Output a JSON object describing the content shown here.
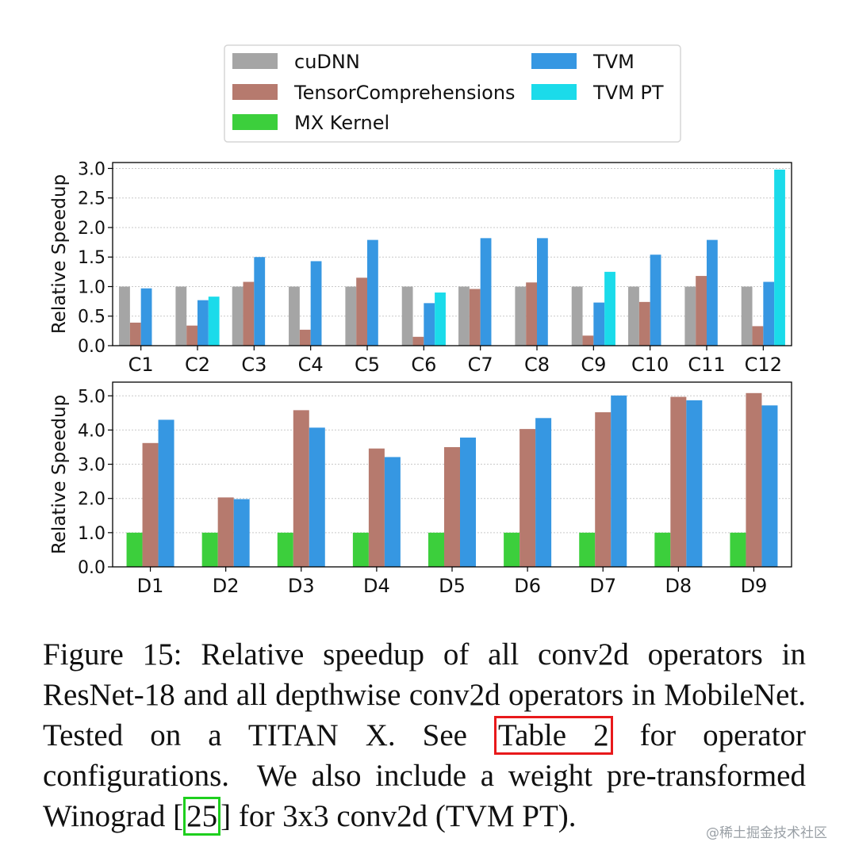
{
  "colors": {
    "cuDNN": "#a5a5a5",
    "TensorComprehensions": "#b67a6e",
    "MX Kernel": "#3ccf3c",
    "TVM": "#3697e2",
    "TVM PT": "#1bdbea"
  },
  "legend": {
    "entries": [
      "cuDNN",
      "TensorComprehensions",
      "MX Kernel",
      "TVM",
      "TVM PT"
    ]
  },
  "chart_data": [
    {
      "type": "bar",
      "ylabel": "Relative Speedup",
      "ylim": [
        0,
        3.1
      ],
      "yticks": [
        "0.0",
        "0.5",
        "1.0",
        "1.5",
        "2.0",
        "2.5",
        "3.0"
      ],
      "ytick_values": [
        0,
        0.5,
        1.0,
        1.5,
        2.0,
        2.5,
        3.0
      ],
      "categories": [
        "C1",
        "C2",
        "C3",
        "C4",
        "C5",
        "C6",
        "C7",
        "C8",
        "C9",
        "C10",
        "C11",
        "C12"
      ],
      "series": [
        {
          "name": "cuDNN",
          "values": [
            1.0,
            1.0,
            1.0,
            1.0,
            1.0,
            1.0,
            1.0,
            1.0,
            1.0,
            1.0,
            1.0,
            1.0
          ]
        },
        {
          "name": "TensorComprehensions",
          "values": [
            0.39,
            0.34,
            1.08,
            0.27,
            1.15,
            0.15,
            0.96,
            1.07,
            0.17,
            0.74,
            1.18,
            0.33
          ]
        },
        {
          "name": "TVM",
          "values": [
            0.97,
            0.77,
            1.5,
            1.43,
            1.79,
            0.72,
            1.82,
            1.82,
            0.73,
            1.54,
            1.79,
            1.08
          ]
        },
        {
          "name": "TVM PT",
          "values": [
            null,
            0.83,
            null,
            null,
            null,
            0.9,
            null,
            null,
            1.25,
            null,
            null,
            2.98
          ]
        }
      ],
      "grid": true
    },
    {
      "type": "bar",
      "ylabel": "Relative Speedup",
      "ylim": [
        0,
        5.4
      ],
      "yticks": [
        "0.0",
        "1.0",
        "2.0",
        "3.0",
        "4.0",
        "5.0"
      ],
      "ytick_values": [
        0,
        1,
        2,
        3,
        4,
        5
      ],
      "categories": [
        "D1",
        "D2",
        "D3",
        "D4",
        "D5",
        "D6",
        "D7",
        "D8",
        "D9"
      ],
      "series": [
        {
          "name": "MX Kernel",
          "values": [
            1.0,
            1.0,
            1.0,
            1.0,
            1.0,
            1.0,
            1.0,
            1.0,
            1.0
          ]
        },
        {
          "name": "TensorComprehensions",
          "values": [
            3.62,
            2.03,
            4.58,
            3.46,
            3.5,
            4.03,
            4.52,
            4.97,
            5.08
          ]
        },
        {
          "name": "TVM",
          "values": [
            4.3,
            1.98,
            4.07,
            3.21,
            3.78,
            4.35,
            5.01,
            4.87,
            4.72
          ]
        }
      ],
      "grid": true
    }
  ],
  "caption": {
    "part1": "Figure 15: Relative speedup of all conv2d operators in ResNet-18 and all depthwise conv2d operators in MobileNet.  Tested on a TITAN X. See ",
    "ref_table": "Table 2",
    "part2": " for operator configurations.  We also include a weight pre-transformed Winograd [",
    "ref_cite": "25",
    "part3": "] for 3x3 conv2d (TVM PT)."
  },
  "watermark": "@稀土掘金技术社区"
}
